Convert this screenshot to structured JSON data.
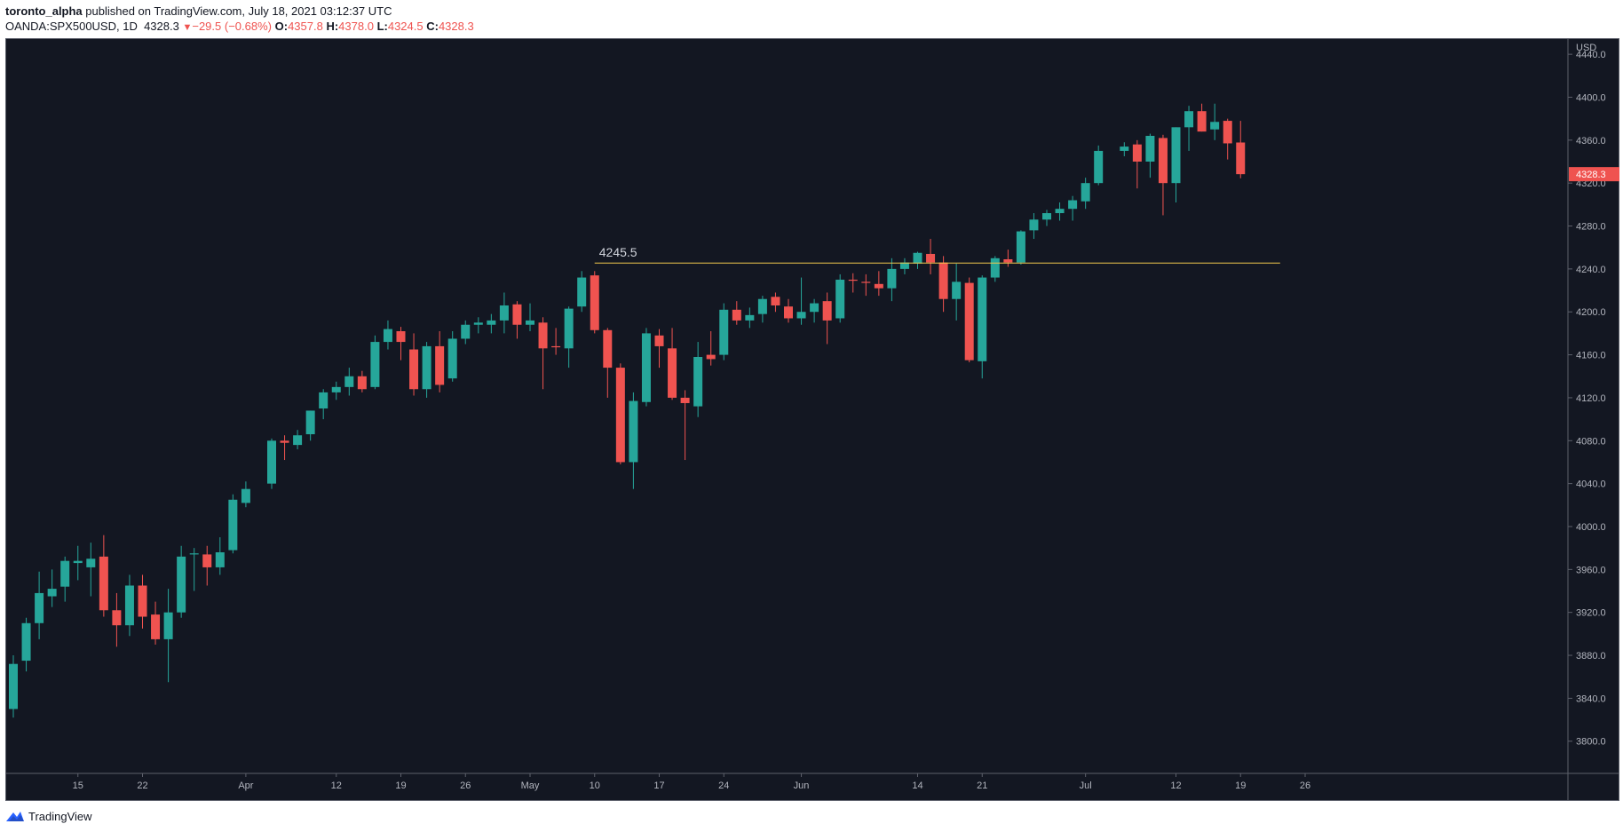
{
  "header": {
    "user": "toronto_alpha",
    "published": " published on TradingView.com, July 18, 2021 03:12:37 UTC"
  },
  "ohlc": {
    "symbol": "OANDA:SPX500USD, 1D",
    "last": "4328.3",
    "change": "−29.5 (−0.68%)",
    "o_label": "O:",
    "o": "4357.8",
    "h_label": "H:",
    "h": "4378.0",
    "l_label": "L:",
    "l": "4324.5",
    "c_label": "C:",
    "c": "4328.3"
  },
  "footer": {
    "brand": "TradingView"
  },
  "colors": {
    "up": "#26a69a",
    "down": "#ef5350",
    "background": "#131722",
    "grid_line": "#5d606b",
    "level_line": "#f2c94c",
    "axis_text": "#b2b5be"
  },
  "chart_data": {
    "type": "candlestick",
    "currency": "USD",
    "last_price_label": "4328.3",
    "ylim": [
      3770,
      4455
    ],
    "y_ticks": [
      3800,
      3840,
      3880,
      3920,
      3960,
      4000,
      4040,
      4080,
      4120,
      4160,
      4200,
      4240,
      4280,
      4320,
      4360,
      4400,
      4440
    ],
    "y_tick_labels": [
      "3800.0",
      "3840.0",
      "3880.0",
      "3920.0",
      "3960.0",
      "4000.0",
      "4040.0",
      "4080.0",
      "4120.0",
      "4160.0",
      "4200.0",
      "4240.0",
      "4280.0",
      "4320.0",
      "4360.0",
      "4400.0",
      "4440.0"
    ],
    "x_tick_labels": [
      {
        "label": "15",
        "date": "2021-03-15"
      },
      {
        "label": "22",
        "date": "2021-03-22"
      },
      {
        "label": "Apr",
        "date": "2021-04-01"
      },
      {
        "label": "12",
        "date": "2021-04-12"
      },
      {
        "label": "19",
        "date": "2021-04-19"
      },
      {
        "label": "26",
        "date": "2021-04-26"
      },
      {
        "label": "May",
        "date": "2021-05-03"
      },
      {
        "label": "10",
        "date": "2021-05-10"
      },
      {
        "label": "17",
        "date": "2021-05-17"
      },
      {
        "label": "24",
        "date": "2021-05-24"
      },
      {
        "label": "Jun",
        "date": "2021-06-01"
      },
      {
        "label": "14",
        "date": "2021-06-14"
      },
      {
        "label": "21",
        "date": "2021-06-21"
      },
      {
        "label": "Jul",
        "date": "2021-07-01"
      },
      {
        "label": "12",
        "date": "2021-07-12"
      },
      {
        "label": "19",
        "date": "2021-07-19"
      },
      {
        "label": "26",
        "date": "2021-07-26"
      }
    ],
    "horizontal_level": {
      "value": 4245.5,
      "label": "4245.5",
      "start": "2021-05-10",
      "end": "2021-07-20"
    },
    "candles": [
      {
        "date": "2021-03-08",
        "o": 3830,
        "h": 3880,
        "l": 3822,
        "c": 3872
      },
      {
        "date": "2021-03-09",
        "o": 3875,
        "h": 3915,
        "l": 3865,
        "c": 3910
      },
      {
        "date": "2021-03-10",
        "o": 3910,
        "h": 3958,
        "l": 3895,
        "c": 3938
      },
      {
        "date": "2021-03-11",
        "o": 3935,
        "h": 3960,
        "l": 3925,
        "c": 3942
      },
      {
        "date": "2021-03-12",
        "o": 3944,
        "h": 3972,
        "l": 3930,
        "c": 3968
      },
      {
        "date": "2021-03-15",
        "o": 3966,
        "h": 3982,
        "l": 3950,
        "c": 3968
      },
      {
        "date": "2021-03-16",
        "o": 3962,
        "h": 3985,
        "l": 3935,
        "c": 3970
      },
      {
        "date": "2021-03-17",
        "o": 3972,
        "h": 3992,
        "l": 3916,
        "c": 3922
      },
      {
        "date": "2021-03-18",
        "o": 3922,
        "h": 3938,
        "l": 3888,
        "c": 3908
      },
      {
        "date": "2021-03-19",
        "o": 3908,
        "h": 3955,
        "l": 3898,
        "c": 3945
      },
      {
        "date": "2021-03-22",
        "o": 3945,
        "h": 3955,
        "l": 3905,
        "c": 3916
      },
      {
        "date": "2021-03-23",
        "o": 3918,
        "h": 3930,
        "l": 3890,
        "c": 3895
      },
      {
        "date": "2021-03-24",
        "o": 3895,
        "h": 3942,
        "l": 3855,
        "c": 3920
      },
      {
        "date": "2021-03-25",
        "o": 3920,
        "h": 3982,
        "l": 3915,
        "c": 3972
      },
      {
        "date": "2021-03-26",
        "o": 3974,
        "h": 3980,
        "l": 3940,
        "c": 3975
      },
      {
        "date": "2021-03-29",
        "o": 3974,
        "h": 3982,
        "l": 3945,
        "c": 3962
      },
      {
        "date": "2021-03-30",
        "o": 3962,
        "h": 3990,
        "l": 3955,
        "c": 3976
      },
      {
        "date": "2021-03-31",
        "o": 3978,
        "h": 4030,
        "l": 3975,
        "c": 4025
      },
      {
        "date": "2021-04-01",
        "o": 4022,
        "h": 4042,
        "l": 4018,
        "c": 4035
      },
      {
        "date": "2021-04-05",
        "o": 4040,
        "h": 4082,
        "l": 4035,
        "c": 4080
      },
      {
        "date": "2021-04-06",
        "o": 4080,
        "h": 4085,
        "l": 4062,
        "c": 4078
      },
      {
        "date": "2021-04-07",
        "o": 4076,
        "h": 4090,
        "l": 4072,
        "c": 4085
      },
      {
        "date": "2021-04-08",
        "o": 4086,
        "h": 4108,
        "l": 4080,
        "c": 4108
      },
      {
        "date": "2021-04-09",
        "o": 4110,
        "h": 4128,
        "l": 4100,
        "c": 4125
      },
      {
        "date": "2021-04-12",
        "o": 4125,
        "h": 4135,
        "l": 4118,
        "c": 4130
      },
      {
        "date": "2021-04-13",
        "o": 4130,
        "h": 4148,
        "l": 4122,
        "c": 4140
      },
      {
        "date": "2021-04-14",
        "o": 4140,
        "h": 4145,
        "l": 4125,
        "c": 4128
      },
      {
        "date": "2021-04-15",
        "o": 4130,
        "h": 4178,
        "l": 4128,
        "c": 4172
      },
      {
        "date": "2021-04-16",
        "o": 4172,
        "h": 4192,
        "l": 4165,
        "c": 4184
      },
      {
        "date": "2021-04-19",
        "o": 4182,
        "h": 4186,
        "l": 4155,
        "c": 4172
      },
      {
        "date": "2021-04-20",
        "o": 4165,
        "h": 4180,
        "l": 4122,
        "c": 4128
      },
      {
        "date": "2021-04-21",
        "o": 4128,
        "h": 4172,
        "l": 4120,
        "c": 4168
      },
      {
        "date": "2021-04-22",
        "o": 4168,
        "h": 4182,
        "l": 4125,
        "c": 4132
      },
      {
        "date": "2021-04-23",
        "o": 4138,
        "h": 4182,
        "l": 4135,
        "c": 4175
      },
      {
        "date": "2021-04-26",
        "o": 4175,
        "h": 4192,
        "l": 4170,
        "c": 4188
      },
      {
        "date": "2021-04-27",
        "o": 4188,
        "h": 4195,
        "l": 4180,
        "c": 4190
      },
      {
        "date": "2021-04-28",
        "o": 4188,
        "h": 4198,
        "l": 4180,
        "c": 4192
      },
      {
        "date": "2021-04-29",
        "o": 4192,
        "h": 4218,
        "l": 4180,
        "c": 4206
      },
      {
        "date": "2021-04-30",
        "o": 4207,
        "h": 4210,
        "l": 4175,
        "c": 4188
      },
      {
        "date": "2021-05-03",
        "o": 4188,
        "h": 4208,
        "l": 4182,
        "c": 4192
      },
      {
        "date": "2021-05-04",
        "o": 4190,
        "h": 4195,
        "l": 4128,
        "c": 4166
      },
      {
        "date": "2021-05-05",
        "o": 4168,
        "h": 4185,
        "l": 4160,
        "c": 4167
      },
      {
        "date": "2021-05-06",
        "o": 4166,
        "h": 4205,
        "l": 4148,
        "c": 4203
      },
      {
        "date": "2021-05-07",
        "o": 4205,
        "h": 4238,
        "l": 4200,
        "c": 4232
      },
      {
        "date": "2021-05-10",
        "o": 4234,
        "h": 4238,
        "l": 4180,
        "c": 4183
      },
      {
        "date": "2021-05-11",
        "o": 4183,
        "h": 4185,
        "l": 4120,
        "c": 4148
      },
      {
        "date": "2021-05-12",
        "o": 4148,
        "h": 4152,
        "l": 4058,
        "c": 4060
      },
      {
        "date": "2021-05-13",
        "o": 4060,
        "h": 4125,
        "l": 4035,
        "c": 4117
      },
      {
        "date": "2021-05-14",
        "o": 4116,
        "h": 4185,
        "l": 4112,
        "c": 4180
      },
      {
        "date": "2021-05-17",
        "o": 4178,
        "h": 4184,
        "l": 4148,
        "c": 4168
      },
      {
        "date": "2021-05-18",
        "o": 4166,
        "h": 4185,
        "l": 4118,
        "c": 4120
      },
      {
        "date": "2021-05-19",
        "o": 4120,
        "h": 4127,
        "l": 4062,
        "c": 4115
      },
      {
        "date": "2021-05-20",
        "o": 4112,
        "h": 4172,
        "l": 4102,
        "c": 4158
      },
      {
        "date": "2021-05-21",
        "o": 4160,
        "h": 4182,
        "l": 4150,
        "c": 4156
      },
      {
        "date": "2021-05-24",
        "o": 4160,
        "h": 4208,
        "l": 4155,
        "c": 4202
      },
      {
        "date": "2021-05-25",
        "o": 4202,
        "h": 4210,
        "l": 4188,
        "c": 4192
      },
      {
        "date": "2021-05-26",
        "o": 4192,
        "h": 4204,
        "l": 4185,
        "c": 4197
      },
      {
        "date": "2021-05-27",
        "o": 4198,
        "h": 4215,
        "l": 4190,
        "c": 4212
      },
      {
        "date": "2021-05-28",
        "o": 4214,
        "h": 4218,
        "l": 4200,
        "c": 4206
      },
      {
        "date": "2021-05-31",
        "o": 4205,
        "h": 4212,
        "l": 4190,
        "c": 4194
      },
      {
        "date": "2021-06-01",
        "o": 4194,
        "h": 4232,
        "l": 4188,
        "c": 4200
      },
      {
        "date": "2021-06-02",
        "o": 4200,
        "h": 4212,
        "l": 4190,
        "c": 4208
      },
      {
        "date": "2021-06-03",
        "o": 4210,
        "h": 4218,
        "l": 4170,
        "c": 4192
      },
      {
        "date": "2021-06-04",
        "o": 4194,
        "h": 4235,
        "l": 4190,
        "c": 4230
      },
      {
        "date": "2021-06-07",
        "o": 4230,
        "h": 4236,
        "l": 4218,
        "c": 4229
      },
      {
        "date": "2021-06-08",
        "o": 4228,
        "h": 4235,
        "l": 4215,
        "c": 4227
      },
      {
        "date": "2021-06-09",
        "o": 4226,
        "h": 4238,
        "l": 4215,
        "c": 4222
      },
      {
        "date": "2021-06-10",
        "o": 4222,
        "h": 4250,
        "l": 4210,
        "c": 4240
      },
      {
        "date": "2021-06-11",
        "o": 4240,
        "h": 4250,
        "l": 4235,
        "c": 4246
      },
      {
        "date": "2021-06-14",
        "o": 4245,
        "h": 4256,
        "l": 4240,
        "c": 4255
      },
      {
        "date": "2021-06-15",
        "o": 4254,
        "h": 4268,
        "l": 4235,
        "c": 4246
      },
      {
        "date": "2021-06-16",
        "o": 4246,
        "h": 4252,
        "l": 4200,
        "c": 4212
      },
      {
        "date": "2021-06-17",
        "o": 4212,
        "h": 4245,
        "l": 4192,
        "c": 4228
      },
      {
        "date": "2021-06-18",
        "o": 4227,
        "h": 4232,
        "l": 4153,
        "c": 4155
      },
      {
        "date": "2021-06-21",
        "o": 4154,
        "h": 4234,
        "l": 4138,
        "c": 4232
      },
      {
        "date": "2021-06-22",
        "o": 4232,
        "h": 4252,
        "l": 4228,
        "c": 4250
      },
      {
        "date": "2021-06-23",
        "o": 4249,
        "h": 4258,
        "l": 4242,
        "c": 4246
      },
      {
        "date": "2021-06-24",
        "o": 4246,
        "h": 4276,
        "l": 4244,
        "c": 4275
      },
      {
        "date": "2021-06-25",
        "o": 4276,
        "h": 4292,
        "l": 4268,
        "c": 4286
      },
      {
        "date": "2021-06-28",
        "o": 4286,
        "h": 4295,
        "l": 4280,
        "c": 4292
      },
      {
        "date": "2021-06-29",
        "o": 4292,
        "h": 4302,
        "l": 4285,
        "c": 4296
      },
      {
        "date": "2021-06-30",
        "o": 4296,
        "h": 4308,
        "l": 4285,
        "c": 4304
      },
      {
        "date": "2021-07-01",
        "o": 4303,
        "h": 4325,
        "l": 4296,
        "c": 4320
      },
      {
        "date": "2021-07-02",
        "o": 4320,
        "h": 4355,
        "l": 4318,
        "c": 4350
      },
      {
        "date": "2021-07-06",
        "o": 4350,
        "h": 4358,
        "l": 4345,
        "c": 4354
      },
      {
        "date": "2021-07-07",
        "o": 4356,
        "h": 4360,
        "l": 4315,
        "c": 4340
      },
      {
        "date": "2021-07-08",
        "o": 4340,
        "h": 4366,
        "l": 4325,
        "c": 4364
      },
      {
        "date": "2021-07-09",
        "o": 4362,
        "h": 4365,
        "l": 4290,
        "c": 4320
      },
      {
        "date": "2021-07-12",
        "o": 4320,
        "h": 4372,
        "l": 4302,
        "c": 4372
      },
      {
        "date": "2021-07-13",
        "o": 4372,
        "h": 4392,
        "l": 4350,
        "c": 4387
      },
      {
        "date": "2021-07-14",
        "o": 4387,
        "h": 4394,
        "l": 4368,
        "c": 4368
      },
      {
        "date": "2021-07-15",
        "o": 4370,
        "h": 4394,
        "l": 4360,
        "c": 4377
      },
      {
        "date": "2021-07-16",
        "o": 4378,
        "h": 4380,
        "l": 4342,
        "c": 4357
      },
      {
        "date": "2021-07-19",
        "o": 4357.8,
        "h": 4378.0,
        "l": 4324.5,
        "c": 4328.3
      }
    ]
  }
}
